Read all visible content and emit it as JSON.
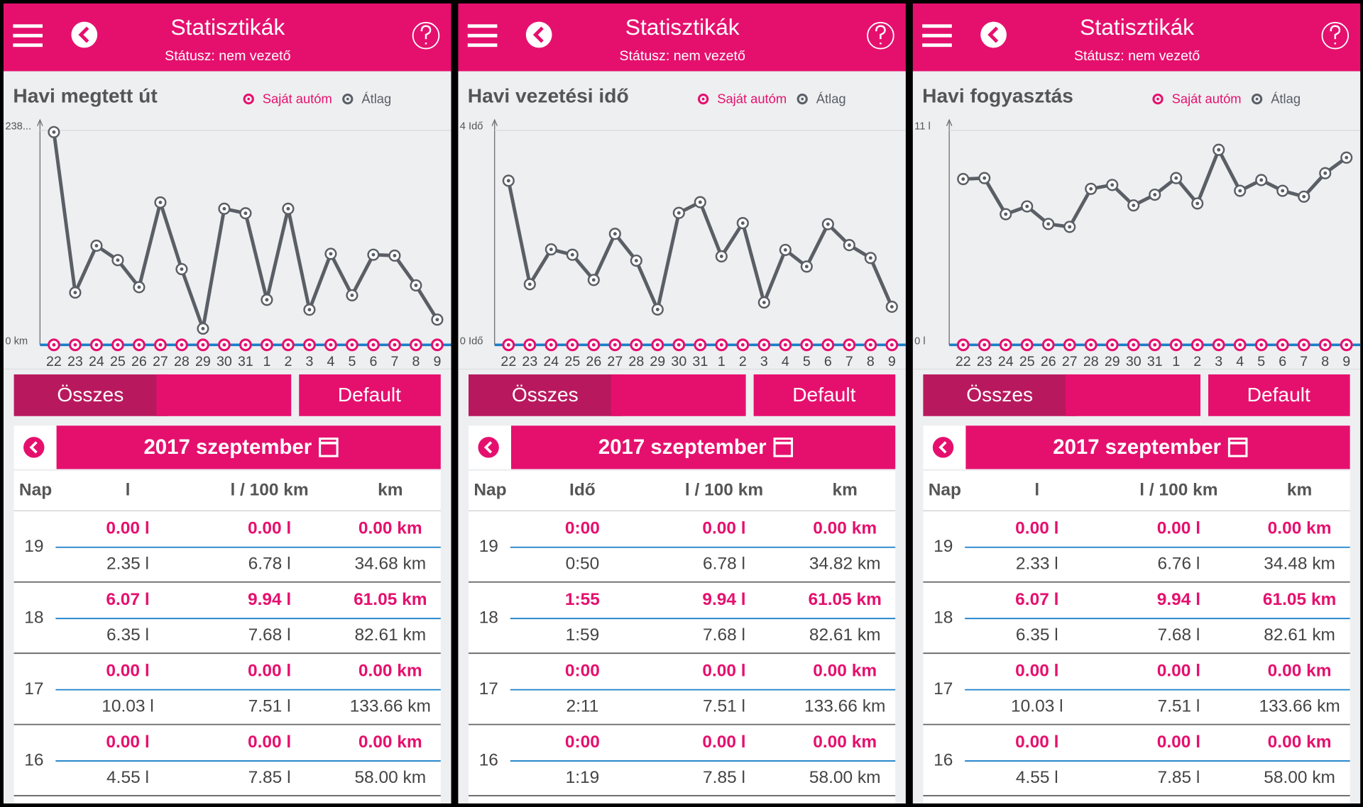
{
  "chart_data": [
    {
      "type": "line",
      "title": "Havi megtett út",
      "categories": [
        "22",
        "23",
        "24",
        "25",
        "26",
        "27",
        "28",
        "29",
        "30",
        "31",
        "1",
        "2",
        "3",
        "4",
        "5",
        "6",
        "7",
        "8",
        "9"
      ],
      "series": [
        {
          "name": "Saját autóm",
          "color": "#e5106e",
          "values": [
            0,
            0,
            0,
            0,
            0,
            0,
            0,
            0,
            0,
            0,
            0,
            0,
            0,
            0,
            0,
            0,
            0,
            0,
            0
          ]
        },
        {
          "name": "Átlag",
          "color": "#5a5f66",
          "values": [
            236,
            58,
            110,
            94,
            64,
            158,
            84,
            18,
            151,
            146,
            50,
            151,
            39,
            101,
            55,
            100,
            99,
            66,
            28
          ]
        }
      ],
      "ylim": [
        0,
        238
      ],
      "yticks": [
        {
          "value": 0,
          "label": "0 km"
        },
        {
          "value": 238,
          "label": "238..."
        }
      ]
    },
    {
      "type": "line",
      "title": "Havi vezetési idő",
      "categories": [
        "22",
        "23",
        "24",
        "25",
        "26",
        "27",
        "28",
        "29",
        "30",
        "31",
        "1",
        "2",
        "3",
        "4",
        "5",
        "6",
        "7",
        "8",
        "9"
      ],
      "series": [
        {
          "name": "Saját autóm",
          "color": "#e5106e",
          "values": [
            0,
            0,
            0,
            0,
            0,
            0,
            0,
            0,
            0,
            0,
            0,
            0,
            0,
            0,
            0,
            0,
            0,
            0,
            0
          ]
        },
        {
          "name": "Átlag",
          "color": "#5a5f66",
          "values": [
            3.06,
            1.13,
            1.78,
            1.68,
            1.21,
            2.07,
            1.57,
            0.66,
            2.46,
            2.66,
            1.65,
            2.27,
            0.79,
            1.77,
            1.46,
            2.25,
            1.86,
            1.62,
            0.71
          ]
        }
      ],
      "ylim": [
        0,
        4
      ],
      "yticks": [
        {
          "value": 0,
          "label": "0 Idő"
        },
        {
          "value": 4,
          "label": "4 Idő"
        }
      ]
    },
    {
      "type": "line",
      "title": "Havi fogyasztás",
      "categories": [
        "22",
        "23",
        "24",
        "25",
        "26",
        "27",
        "28",
        "29",
        "30",
        "31",
        "1",
        "2",
        "3",
        "4",
        "5",
        "6",
        "7",
        "8",
        "9"
      ],
      "series": [
        {
          "name": "Saját autóm",
          "color": "#e5106e",
          "values": [
            0,
            0,
            0,
            0,
            0,
            0,
            0,
            0,
            0,
            0,
            0,
            0,
            0,
            0,
            0,
            0,
            0,
            0,
            0
          ]
        },
        {
          "name": "Átlag",
          "color": "#5a5f66",
          "values": [
            8.5,
            8.55,
            6.7,
            7.1,
            6.2,
            6.05,
            8.0,
            8.2,
            7.15,
            7.7,
            8.55,
            7.25,
            10.0,
            7.9,
            8.45,
            7.9,
            7.6,
            8.8,
            9.6
          ]
        }
      ],
      "ylim": [
        0,
        11
      ],
      "yticks": [
        {
          "value": 0,
          "label": "0 l"
        },
        {
          "value": 11,
          "label": "11 l"
        }
      ]
    }
  ],
  "screens": [
    {
      "header": {
        "title": "Statisztikák",
        "status": "Státusz: nem vezető"
      },
      "buttons": [
        "Összes",
        "Default"
      ],
      "month": "2017 szeptember",
      "table": {
        "columns": [
          "Nap",
          "l",
          "l / 100 km",
          "km"
        ],
        "rows": [
          {
            "day": "19",
            "lines": [
              [
                "0.00 l",
                "0.00 l",
                "0.00 km"
              ],
              [
                "2.35 l",
                "6.78 l",
                "34.68 km"
              ]
            ]
          },
          {
            "day": "18",
            "lines": [
              [
                "6.07 l",
                "9.94 l",
                "61.05 km"
              ],
              [
                "6.35 l",
                "7.68 l",
                "82.61 km"
              ]
            ]
          },
          {
            "day": "17",
            "lines": [
              [
                "0.00 l",
                "0.00 l",
                "0.00 km"
              ],
              [
                "10.03 l",
                "7.51 l",
                "133.66 km"
              ]
            ]
          },
          {
            "day": "16",
            "lines": [
              [
                "0.00 l",
                "0.00 l",
                "0.00 km"
              ],
              [
                "4.55 l",
                "7.85 l",
                "58.00 km"
              ]
            ]
          }
        ]
      }
    },
    {
      "header": {
        "title": "Statisztikák",
        "status": "Státusz: nem vezető"
      },
      "buttons": [
        "Összes",
        "Default"
      ],
      "month": "2017 szeptember",
      "table": {
        "columns": [
          "Nap",
          "Idő",
          "l / 100 km",
          "km"
        ],
        "rows": [
          {
            "day": "19",
            "lines": [
              [
                "0:00",
                "0.00 l",
                "0.00 km"
              ],
              [
                "0:50",
                "6.78 l",
                "34.82 km"
              ]
            ]
          },
          {
            "day": "18",
            "lines": [
              [
                "1:55",
                "9.94 l",
                "61.05 km"
              ],
              [
                "1:59",
                "7.68 l",
                "82.61 km"
              ]
            ]
          },
          {
            "day": "17",
            "lines": [
              [
                "0:00",
                "0.00 l",
                "0.00 km"
              ],
              [
                "2:11",
                "7.51 l",
                "133.66 km"
              ]
            ]
          },
          {
            "day": "16",
            "lines": [
              [
                "0:00",
                "0.00 l",
                "0.00 km"
              ],
              [
                "1:19",
                "7.85 l",
                "58.00 km"
              ]
            ]
          }
        ]
      }
    },
    {
      "header": {
        "title": "Statisztikák",
        "status": "Státusz: nem vezető"
      },
      "buttons": [
        "Összes",
        "Default"
      ],
      "month": "2017 szeptember",
      "table": {
        "columns": [
          "Nap",
          "l",
          "l / 100 km",
          "km"
        ],
        "rows": [
          {
            "day": "19",
            "lines": [
              [
                "0.00 l",
                "0.00 l",
                "0.00 km"
              ],
              [
                "2.33 l",
                "6.76 l",
                "34.48 km"
              ]
            ]
          },
          {
            "day": "18",
            "lines": [
              [
                "6.07 l",
                "9.94 l",
                "61.05 km"
              ],
              [
                "6.35 l",
                "7.68 l",
                "82.61 km"
              ]
            ]
          },
          {
            "day": "17",
            "lines": [
              [
                "0.00 l",
                "0.00 l",
                "0.00 km"
              ],
              [
                "10.03 l",
                "7.51 l",
                "133.66 km"
              ]
            ]
          },
          {
            "day": "16",
            "lines": [
              [
                "0.00 l",
                "0.00 l",
                "0.00 km"
              ],
              [
                "4.55 l",
                "7.85 l",
                "58.00 km"
              ]
            ]
          }
        ]
      }
    }
  ]
}
